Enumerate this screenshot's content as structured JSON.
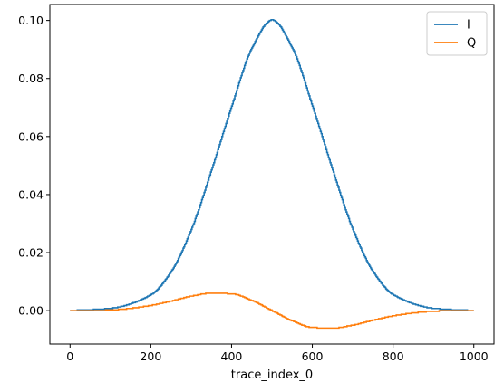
{
  "chart_data": {
    "type": "line",
    "step": true,
    "title": "",
    "xlabel": "trace_index_0",
    "ylabel": "",
    "xlim": [
      -50,
      1050
    ],
    "ylim": [
      -0.0115,
      0.1055
    ],
    "x_ticks": [
      0,
      200,
      400,
      600,
      800,
      1000
    ],
    "x_tick_labels": [
      "0",
      "200",
      "400",
      "600",
      "800",
      "1000"
    ],
    "y_ticks": [
      0.0,
      0.02,
      0.04,
      0.06,
      0.08,
      0.1
    ],
    "y_tick_labels": [
      "0.00",
      "0.02",
      "0.04",
      "0.06",
      "0.08",
      "0.10"
    ],
    "grid": false,
    "legend_position": "top-right",
    "series": [
      {
        "name": "I",
        "color": "#1f77b4",
        "x": [
          0,
          100,
          200,
          250,
          300,
          350,
          400,
          450,
          500,
          550,
          600,
          650,
          700,
          750,
          800,
          900,
          1000
        ],
        "values": [
          0.0,
          0.0008,
          0.0055,
          0.0135,
          0.028,
          0.0485,
          0.0705,
          0.0905,
          0.1002,
          0.0905,
          0.0705,
          0.0485,
          0.028,
          0.0135,
          0.0055,
          0.0008,
          0.0
        ]
      },
      {
        "name": "Q",
        "color": "#ff7f0e",
        "x": [
          0,
          50,
          100,
          150,
          200,
          250,
          300,
          350,
          400,
          450,
          500,
          550,
          600,
          650,
          700,
          750,
          800,
          850,
          900,
          950,
          1000
        ],
        "values": [
          0.0,
          0.0,
          0.0002,
          0.0008,
          0.0018,
          0.0033,
          0.005,
          0.006,
          0.0058,
          0.0035,
          0.0,
          -0.0035,
          -0.0058,
          -0.006,
          -0.005,
          -0.0033,
          -0.0018,
          -0.0008,
          -0.0002,
          0.0,
          0.0
        ]
      }
    ]
  }
}
